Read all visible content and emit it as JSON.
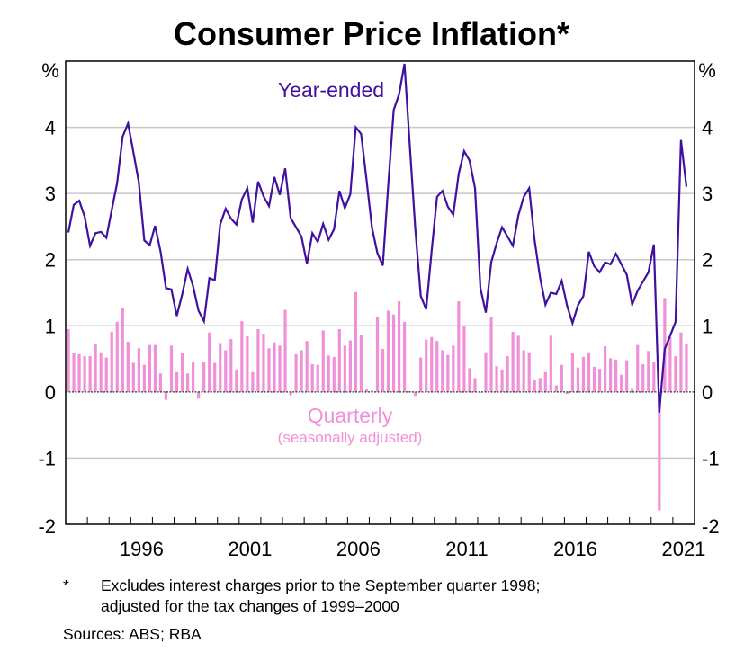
{
  "chart_data": {
    "type": "bar+line",
    "title": "Consumer Price Inflation*",
    "ylabel_left": "%",
    "ylabel_right": "%",
    "ylim": [
      -2,
      5
    ],
    "yticks": [
      -2,
      -1,
      0,
      1,
      2,
      3,
      4
    ],
    "grid": true,
    "x_start": {
      "year": 1993,
      "quarter": 1
    },
    "x_frequency": "quarterly",
    "x_range_years": [
      1993,
      2021
    ],
    "xtick_labels": [
      "1996",
      "2001",
      "2006",
      "2011",
      "2016",
      "2021"
    ],
    "series": [
      {
        "name": "Quarterly",
        "sublabel": "(seasonally adjusted)",
        "type": "bar",
        "color": "#f090d8",
        "values": [
          0.95,
          0.59,
          0.57,
          0.54,
          0.54,
          0.72,
          0.6,
          0.52,
          0.91,
          1.06,
          1.27,
          0.76,
          0.44,
          0.66,
          0.41,
          0.71,
          0.71,
          0.28,
          -0.12,
          0.7,
          0.3,
          0.59,
          0.28,
          0.45,
          -0.1,
          0.46,
          0.9,
          0.44,
          0.74,
          0.63,
          0.8,
          0.34,
          1.07,
          0.84,
          0.3,
          0.95,
          0.88,
          0.66,
          0.75,
          0.7,
          1.24,
          -0.05,
          0.57,
          0.63,
          0.77,
          0.42,
          0.41,
          0.93,
          0.55,
          0.53,
          0.95,
          0.7,
          0.78,
          1.51,
          0.86,
          0.05,
          0.02,
          1.13,
          0.65,
          1.23,
          1.17,
          1.37,
          1.06,
          0.01,
          -0.06,
          0.52,
          0.79,
          0.83,
          0.77,
          0.63,
          0.56,
          0.7,
          1.37,
          1.0,
          0.36,
          0.21,
          -0.01,
          0.6,
          1.13,
          0.39,
          0.34,
          0.54,
          0.91,
          0.85,
          0.63,
          0.6,
          0.19,
          0.21,
          0.3,
          0.85,
          0.1,
          0.41,
          -0.03,
          0.59,
          0.37,
          0.53,
          0.6,
          0.38,
          0.35,
          0.69,
          0.51,
          0.49,
          0.26,
          0.48,
          0.06,
          0.71,
          0.42,
          0.62,
          0.45,
          -1.79,
          1.42,
          0.83,
          0.54,
          0.9,
          0.73
        ]
      },
      {
        "name": "Year-ended",
        "type": "line",
        "color": "#4010a0",
        "values": [
          2.41,
          2.83,
          2.89,
          2.65,
          2.21,
          2.4,
          2.42,
          2.33,
          2.75,
          3.16,
          3.86,
          4.06,
          3.62,
          3.17,
          2.29,
          2.22,
          2.51,
          2.12,
          1.57,
          1.55,
          1.15,
          1.48,
          1.86,
          1.6,
          1.23,
          1.07,
          1.72,
          1.69,
          2.53,
          2.77,
          2.62,
          2.53,
          2.91,
          3.08,
          2.56,
          3.18,
          2.96,
          2.81,
          3.25,
          2.98,
          3.38,
          2.63,
          2.49,
          2.35,
          1.94,
          2.4,
          2.27,
          2.54,
          2.3,
          2.46,
          3.04,
          2.78,
          2.99,
          4.0,
          3.9,
          3.21,
          2.48,
          2.1,
          1.91,
          3.12,
          4.26,
          4.5,
          4.96,
          3.7,
          2.45,
          1.45,
          1.25,
          2.12,
          2.95,
          3.04,
          2.8,
          2.68,
          3.3,
          3.64,
          3.5,
          3.08,
          1.57,
          1.2,
          1.96,
          2.25,
          2.49,
          2.35,
          2.21,
          2.67,
          2.95,
          3.08,
          2.3,
          1.73,
          1.32,
          1.5,
          1.48,
          1.68,
          1.3,
          1.04,
          1.31,
          1.45,
          2.12,
          1.9,
          1.81,
          1.96,
          1.93,
          2.09,
          1.93,
          1.77,
          1.32,
          1.53,
          1.67,
          1.81,
          2.23,
          -0.31,
          0.65,
          0.85,
          1.06,
          3.81,
          3.1
        ]
      }
    ],
    "annotations": [
      {
        "text": "Year-ended",
        "color": "#4010a0"
      },
      {
        "text": "Quarterly",
        "color": "#f090d8"
      },
      {
        "text": "(seasonally adjusted)",
        "color": "#f090d8"
      }
    ]
  },
  "notes": {
    "marker": "*",
    "line1": "Excludes interest charges prior to the September quarter 1998;",
    "line2": "adjusted for the tax changes of 1999–2000",
    "sources": "Sources: ABS; RBA"
  }
}
